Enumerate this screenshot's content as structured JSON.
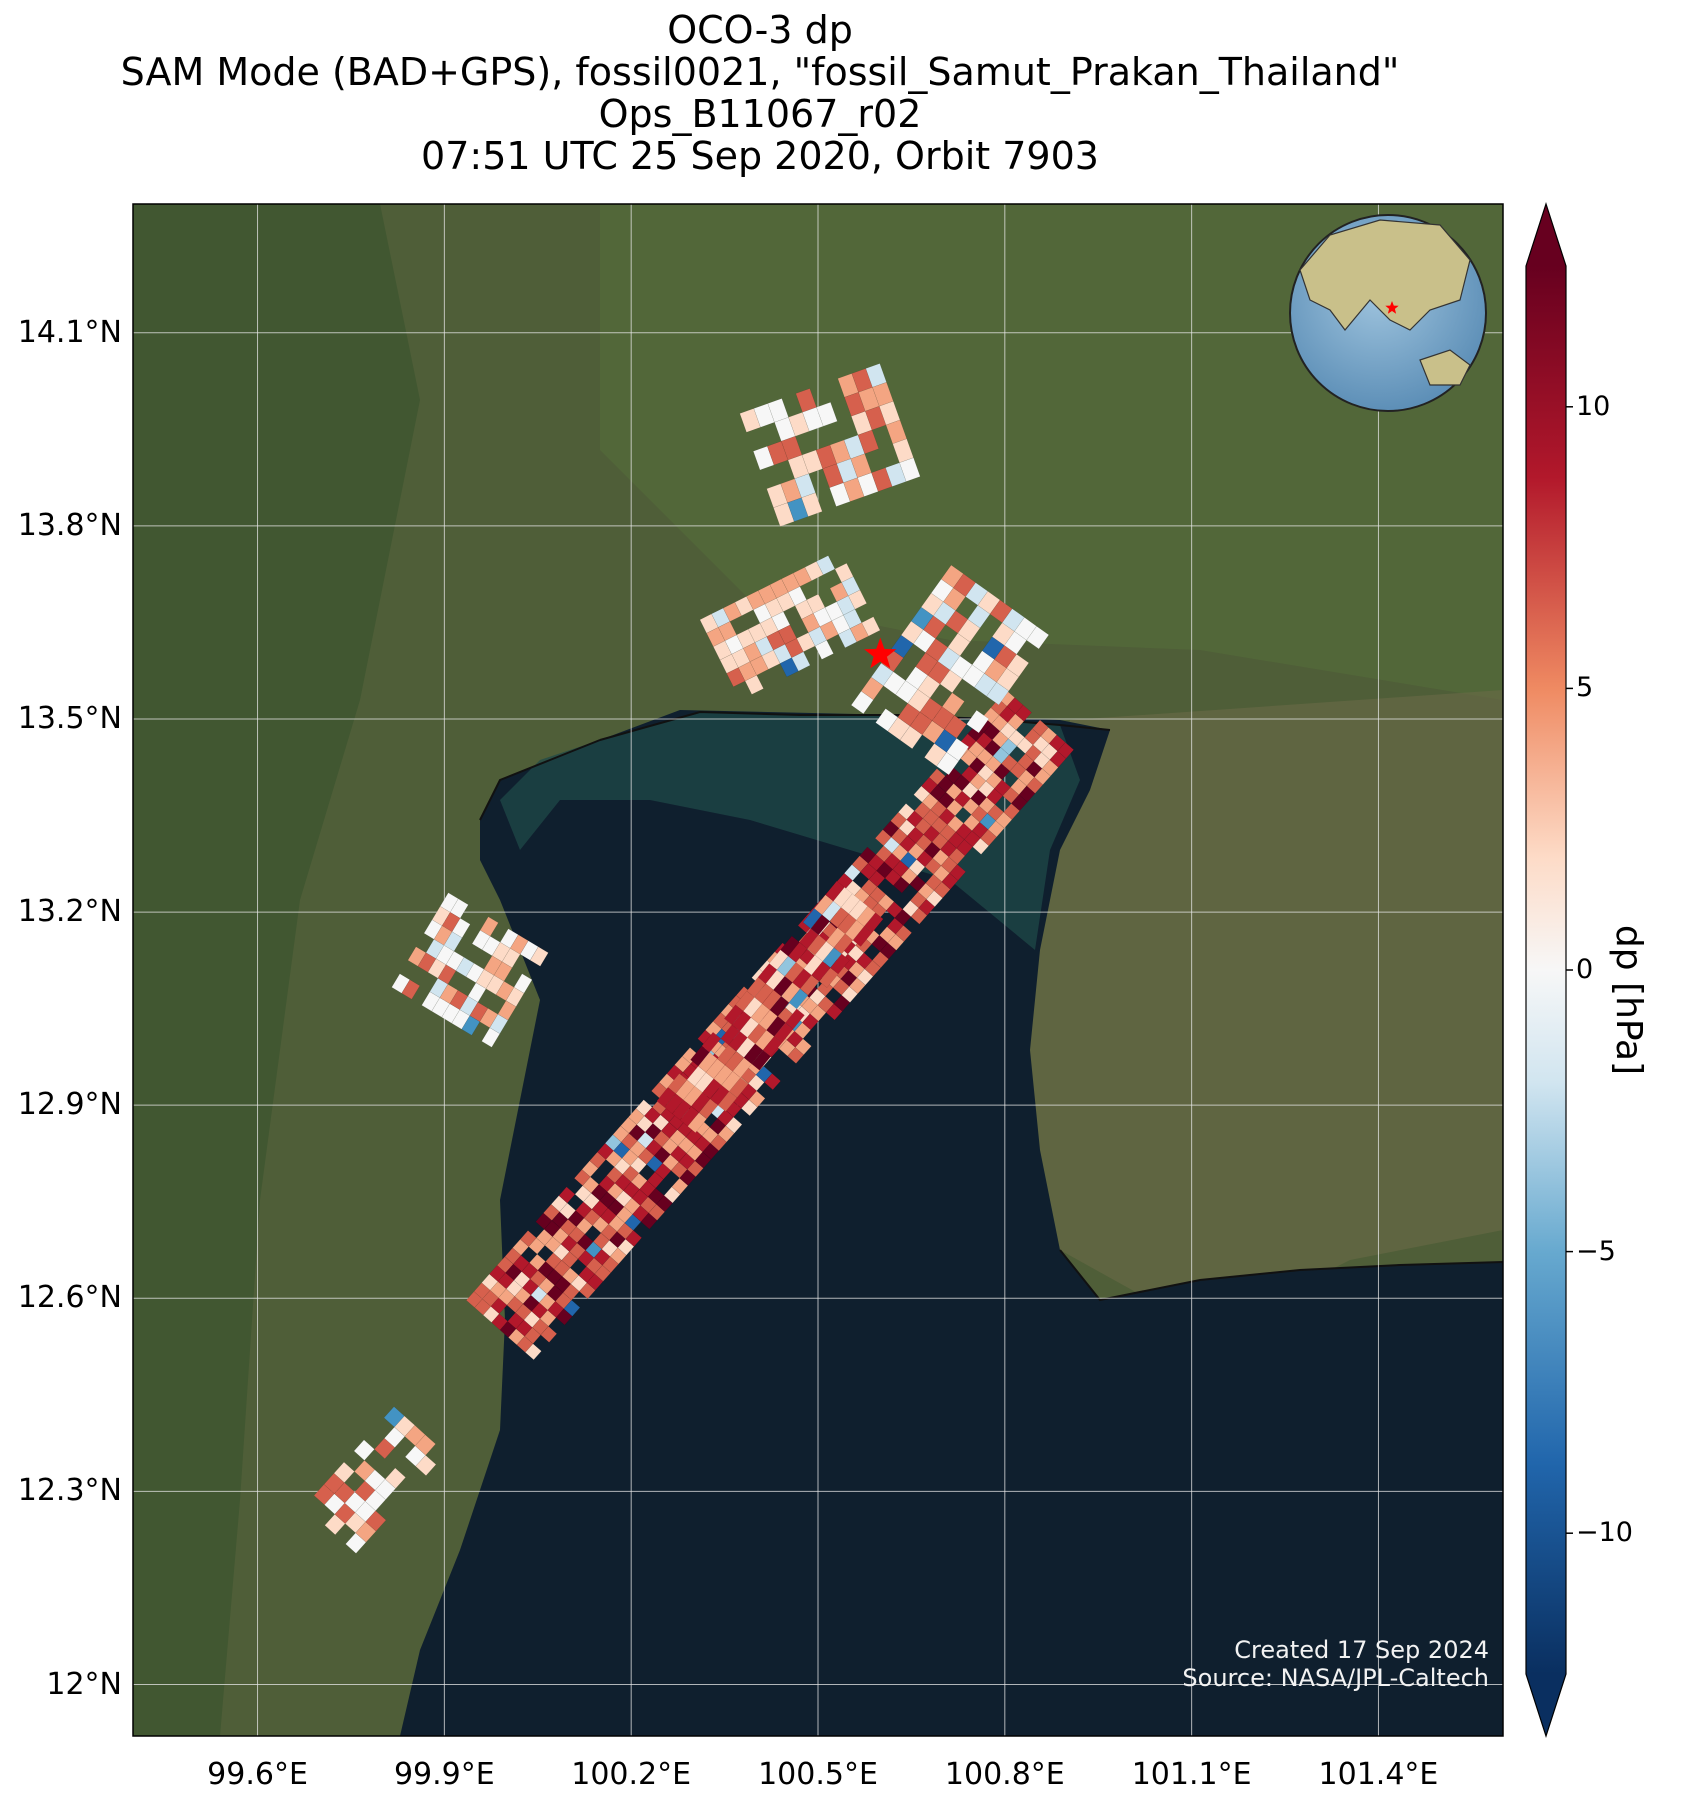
{
  "title": {
    "line1": "OCO-3 dp",
    "line2": "SAM Mode (BAD+GPS), fossil0021, \"fossil_Samut_Prakan_Thailand\"",
    "line3": "Ops_B11067_r02",
    "line4": "07:51 UTC 25 Sep 2020, Orbit 7903"
  },
  "axes": {
    "lat_labels": [
      "14.1°N",
      "13.8°N",
      "13.5°N",
      "13.2°N",
      "12.9°N",
      "12.6°N",
      "12.3°N",
      "12°N"
    ],
    "lon_labels": [
      "99.6°E",
      "99.9°E",
      "100.2°E",
      "100.5°E",
      "100.8°E",
      "101.1°E",
      "101.4°E"
    ],
    "lat_values": [
      14.1,
      13.8,
      13.5,
      13.2,
      12.9,
      12.6,
      12.3,
      12.0
    ],
    "lon_values": [
      99.6,
      99.9,
      100.2,
      100.5,
      100.8,
      101.1,
      101.4
    ],
    "lat_range": [
      11.92,
      14.3
    ],
    "lon_range": [
      99.4,
      101.6
    ],
    "grid": true
  },
  "colorbar": {
    "label": "dp [hPa]",
    "tick_labels": [
      "10",
      "5",
      "0",
      "−5",
      "−10"
    ],
    "tick_values": [
      10,
      5,
      0,
      -5,
      -10
    ],
    "range": [
      -10,
      10
    ],
    "colormap": "RdBu_r",
    "extend": "both",
    "colors": {
      "neg_end": "#0a2f60",
      "neg_mid": "#5fa4cc",
      "zero": "#f7f7f7",
      "pos_mid": "#e9876b",
      "pos_end": "#6b0018"
    }
  },
  "target": {
    "lat": 13.6,
    "lon": 100.6,
    "marker": "red-star"
  },
  "credits": {
    "created": "Created 17 Sep 2024",
    "source": "Source: NASA/JPL-Caltech"
  },
  "inset_globe": {
    "marker": "red-star",
    "region": "Asia"
  },
  "colors": {
    "land": "#4a5a35",
    "sea": "#0f1f2e",
    "gridline": "#e8e8e8"
  }
}
